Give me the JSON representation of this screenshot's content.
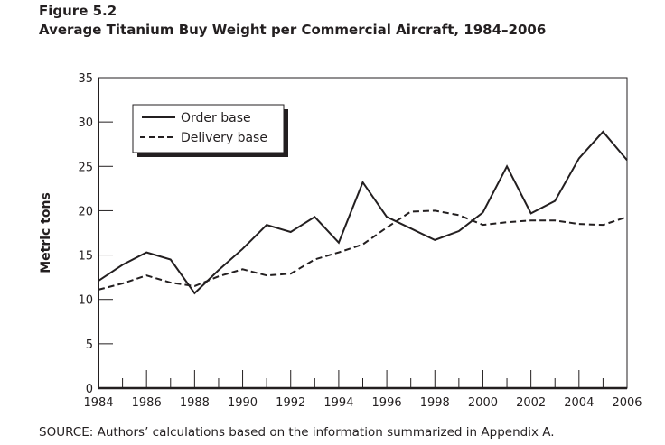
{
  "figure_label": "Figure 5.2",
  "source": "SOURCE: Authors’ calculations based on the information summarized in Appendix A.",
  "chart_data": {
    "type": "line",
    "title": "Average Titanium Buy Weight per Commercial Aircraft, 1984–2006",
    "xlabel": "",
    "ylabel": "Metric tons",
    "xlim": [
      1984,
      2006
    ],
    "ylim": [
      0,
      35
    ],
    "x_tick_labels": [
      "1984",
      "1986",
      "1988",
      "1990",
      "1992",
      "1994",
      "1996",
      "1998",
      "2000",
      "2002",
      "2004",
      "2006"
    ],
    "y_tick_labels": [
      "0",
      "5",
      "10",
      "15",
      "20",
      "25",
      "30",
      "35"
    ],
    "grid": false,
    "legend_placement": "top-left",
    "x": [
      1984,
      1985,
      1986,
      1987,
      1988,
      1989,
      1990,
      1991,
      1992,
      1993,
      1994,
      1995,
      1996,
      1997,
      1998,
      1999,
      2000,
      2001,
      2002,
      2003,
      2004,
      2005,
      2006
    ],
    "series": [
      {
        "name": "Order base",
        "style": "solid",
        "values": [
          12.1,
          13.9,
          15.3,
          14.5,
          10.7,
          13.3,
          15.7,
          18.4,
          17.6,
          19.3,
          16.4,
          23.2,
          19.3,
          18.0,
          16.7,
          17.7,
          19.8,
          25.0,
          19.7,
          21.1,
          25.9,
          28.9,
          25.7
        ]
      },
      {
        "name": "Delivery base",
        "style": "dashed",
        "values": [
          11.1,
          11.8,
          12.7,
          11.9,
          11.5,
          12.6,
          13.4,
          12.7,
          12.9,
          14.5,
          15.3,
          16.2,
          18.1,
          19.9,
          20.0,
          19.5,
          18.4,
          18.7,
          18.9,
          18.9,
          18.5,
          18.4,
          19.3
        ]
      }
    ],
    "colors": {
      "line": "#231f20"
    }
  }
}
